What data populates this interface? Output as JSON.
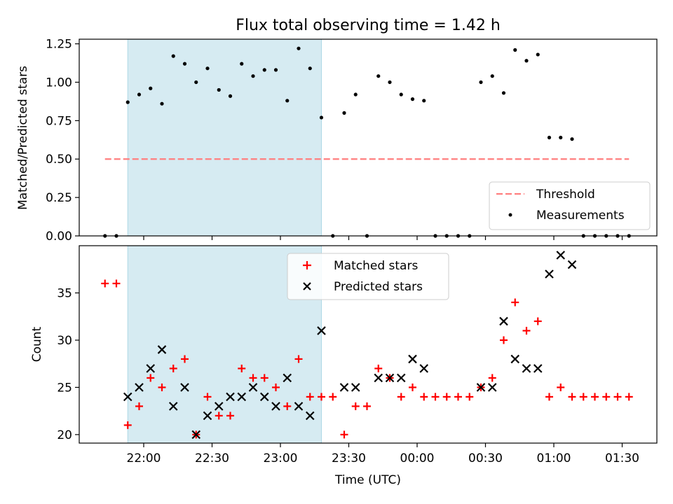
{
  "figure": {
    "title": "Flux total observing time = 1.42 h",
    "xlabel": "Time (UTC)",
    "x_tick_labels": [
      "22:00",
      "22:30",
      "23:00",
      "23:30",
      "00:00",
      "00:30",
      "01:00",
      "01:30"
    ],
    "shaded_span": [
      "21:53",
      "23:18"
    ],
    "shade_color": "#add8e6"
  },
  "chart_data": [
    {
      "type": "scatter",
      "title": "Flux total observing time = 1.42 h",
      "xlabel": "",
      "ylabel": "Matched/Predicted stars",
      "x_unit": "time HH:MM (UTC)",
      "ylim": [
        0,
        1.28
      ],
      "y_ticks": [
        "0.00",
        "0.25",
        "0.50",
        "0.75",
        "1.00",
        "1.25"
      ],
      "legend_position": "lower right",
      "threshold": {
        "name": "Threshold",
        "value": 0.5,
        "x_range": [
          "21:43",
          "01:33"
        ],
        "color": "#ff7f7f",
        "style": "dashed"
      },
      "series": [
        {
          "name": "Measurements",
          "color": "#000000",
          "marker": "dot",
          "points": [
            [
              "21:43",
              0.0
            ],
            [
              "21:48",
              0.0
            ],
            [
              "21:53",
              0.87
            ],
            [
              "21:58",
              0.92
            ],
            [
              "22:03",
              0.96
            ],
            [
              "22:08",
              0.86
            ],
            [
              "22:13",
              1.17
            ],
            [
              "22:18",
              1.12
            ],
            [
              "22:23",
              1.0
            ],
            [
              "22:28",
              1.09
            ],
            [
              "22:33",
              0.95
            ],
            [
              "22:38",
              0.91
            ],
            [
              "22:43",
              1.12
            ],
            [
              "22:48",
              1.04
            ],
            [
              "22:53",
              1.08
            ],
            [
              "22:58",
              1.08
            ],
            [
              "23:03",
              0.88
            ],
            [
              "23:08",
              1.22
            ],
            [
              "23:13",
              1.09
            ],
            [
              "23:18",
              0.77
            ],
            [
              "23:23",
              0.0
            ],
            [
              "23:28",
              0.8
            ],
            [
              "23:33",
              0.92
            ],
            [
              "23:38",
              0.0
            ],
            [
              "23:43",
              1.04
            ],
            [
              "23:48",
              1.0
            ],
            [
              "23:53",
              0.92
            ],
            [
              "23:58",
              0.89
            ],
            [
              "00:03",
              0.88
            ],
            [
              "00:08",
              0.0
            ],
            [
              "00:13",
              0.0
            ],
            [
              "00:18",
              0.0
            ],
            [
              "00:23",
              0.0
            ],
            [
              "00:28",
              1.0
            ],
            [
              "00:33",
              1.04
            ],
            [
              "00:38",
              0.93
            ],
            [
              "00:43",
              1.21
            ],
            [
              "00:48",
              1.14
            ],
            [
              "00:53",
              1.18
            ],
            [
              "00:58",
              0.64
            ],
            [
              "01:03",
              0.64
            ],
            [
              "01:08",
              0.63
            ],
            [
              "01:13",
              0.0
            ],
            [
              "01:18",
              0.0
            ],
            [
              "01:23",
              0.0
            ],
            [
              "01:28",
              0.0
            ],
            [
              "01:33",
              0.0
            ]
          ]
        }
      ]
    },
    {
      "type": "scatter",
      "xlabel": "Time (UTC)",
      "ylabel": "Count",
      "x_unit": "time HH:MM (UTC)",
      "ylim": [
        19.1,
        40.0
      ],
      "y_ticks": [
        "20",
        "25",
        "30",
        "35"
      ],
      "legend_position": "upper center",
      "series": [
        {
          "name": "Matched stars",
          "color": "#ff0000",
          "marker": "plus",
          "points": [
            [
              "21:43",
              36
            ],
            [
              "21:48",
              36
            ],
            [
              "21:53",
              21
            ],
            [
              "21:58",
              23
            ],
            [
              "22:03",
              26
            ],
            [
              "22:08",
              25
            ],
            [
              "22:13",
              27
            ],
            [
              "22:18",
              28
            ],
            [
              "22:23",
              20
            ],
            [
              "22:28",
              24
            ],
            [
              "22:33",
              22
            ],
            [
              "22:38",
              22
            ],
            [
              "22:43",
              27
            ],
            [
              "22:48",
              26
            ],
            [
              "22:53",
              26
            ],
            [
              "22:58",
              25
            ],
            [
              "23:03",
              23
            ],
            [
              "23:08",
              28
            ],
            [
              "23:13",
              24
            ],
            [
              "23:18",
              24
            ],
            [
              "23:23",
              24
            ],
            [
              "23:28",
              20
            ],
            [
              "23:33",
              23
            ],
            [
              "23:38",
              23
            ],
            [
              "23:43",
              27
            ],
            [
              "23:48",
              26
            ],
            [
              "23:53",
              24
            ],
            [
              "23:58",
              25
            ],
            [
              "00:03",
              24
            ],
            [
              "00:08",
              24
            ],
            [
              "00:13",
              24
            ],
            [
              "00:18",
              24
            ],
            [
              "00:23",
              24
            ],
            [
              "00:28",
              25
            ],
            [
              "00:33",
              26
            ],
            [
              "00:38",
              30
            ],
            [
              "00:43",
              34
            ],
            [
              "00:48",
              31
            ],
            [
              "00:53",
              32
            ],
            [
              "00:58",
              24
            ],
            [
              "01:03",
              25
            ],
            [
              "01:08",
              24
            ],
            [
              "01:13",
              24
            ],
            [
              "01:18",
              24
            ],
            [
              "01:23",
              24
            ],
            [
              "01:28",
              24
            ],
            [
              "01:33",
              24
            ]
          ]
        },
        {
          "name": "Predicted stars",
          "color": "#000000",
          "marker": "x",
          "points": [
            [
              "21:53",
              24
            ],
            [
              "21:58",
              25
            ],
            [
              "22:03",
              27
            ],
            [
              "22:08",
              29
            ],
            [
              "22:13",
              23
            ],
            [
              "22:18",
              25
            ],
            [
              "22:23",
              20
            ],
            [
              "22:28",
              22
            ],
            [
              "22:33",
              23
            ],
            [
              "22:38",
              24
            ],
            [
              "22:43",
              24
            ],
            [
              "22:48",
              25
            ],
            [
              "22:53",
              24
            ],
            [
              "22:58",
              23
            ],
            [
              "23:03",
              26
            ],
            [
              "23:08",
              23
            ],
            [
              "23:13",
              22
            ],
            [
              "23:18",
              31
            ],
            [
              "23:28",
              25
            ],
            [
              "23:33",
              25
            ],
            [
              "23:43",
              26
            ],
            [
              "23:48",
              26
            ],
            [
              "23:53",
              26
            ],
            [
              "23:58",
              28
            ],
            [
              "00:03",
              27
            ],
            [
              "00:28",
              25
            ],
            [
              "00:33",
              25
            ],
            [
              "00:38",
              32
            ],
            [
              "00:43",
              28
            ],
            [
              "00:48",
              27
            ],
            [
              "00:53",
              27
            ],
            [
              "00:58",
              37
            ],
            [
              "01:03",
              39
            ],
            [
              "01:08",
              38
            ]
          ]
        }
      ]
    }
  ]
}
